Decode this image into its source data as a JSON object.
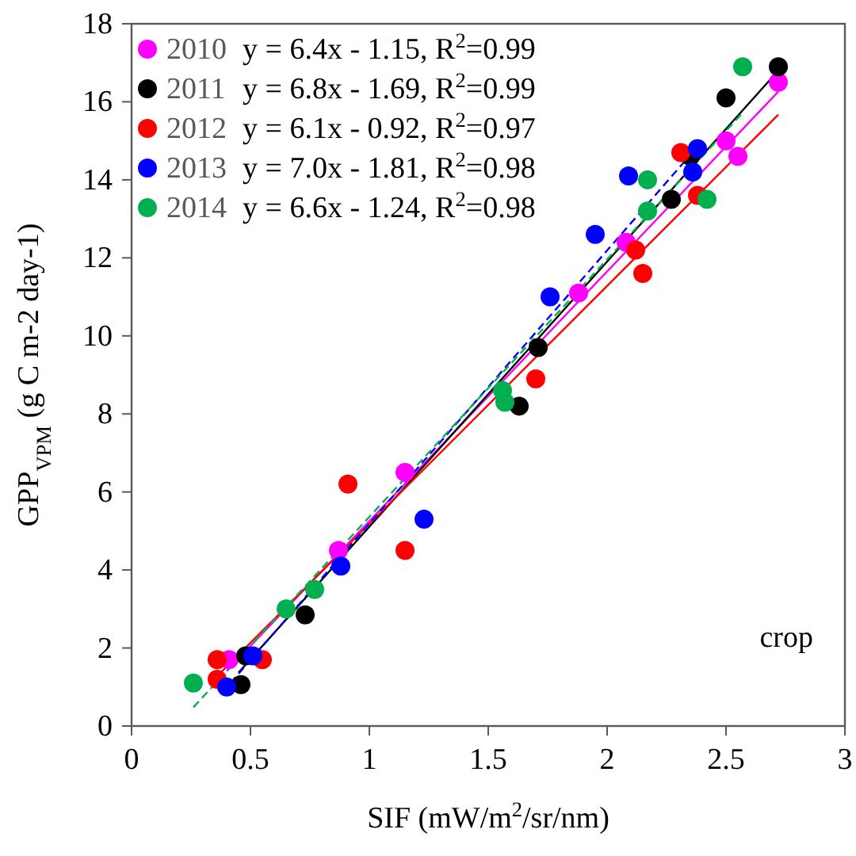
{
  "chart_data": {
    "type": "scatter",
    "xlabel": "SIF (mW/m$^{2}$/sr/nm)",
    "ylabel": "GPP$_{VPM}$ (g C m-2 day-1)",
    "xlim": [
      0,
      3
    ],
    "xticks": [
      0,
      {
        "value": 0.5,
        "label": "0.5"
      },
      1,
      {
        "value": 1.5,
        "label": "1.5"
      },
      2,
      {
        "value": 2.5,
        "label": "2.5"
      },
      3
    ],
    "ylim": [
      0,
      18
    ],
    "yticks": [
      0,
      2,
      4,
      6,
      8,
      10,
      12,
      14,
      16,
      18
    ],
    "grid": false,
    "legend": "top left",
    "marker": "circle",
    "annotations": [
      "y = 6.4x - 1.15, R$^{2}$=0.99",
      "y = 6.8x - 1.69, R$^{2}$=0.99",
      "y = 6.1x - 0.92, R$^{2}$=0.97",
      "y = 7.0x - 1.81, R$^{2}$=0.98",
      "y = 6.6x - 1.24, R$^{2}$=0.98",
      "crop"
    ],
    "series": [
      {
        "type": "line",
        "marker": "none",
        "color": "#ff00ff",
        "line_style": "solid",
        "x": [
          0.4,
          2.72
        ],
        "values": [
          1.41,
          16.26
        ]
      },
      {
        "type": "line",
        "marker": "none",
        "color": "#000000",
        "line_style": "solid",
        "x": [
          0.45,
          2.72
        ],
        "values": [
          1.37,
          16.8
        ]
      },
      {
        "type": "line",
        "marker": "none",
        "color": "#ff0000",
        "line_style": "solid",
        "x": [
          0.36,
          2.72
        ],
        "values": [
          1.28,
          15.67
        ]
      },
      {
        "type": "line",
        "marker": "none",
        "color": "#0000ff",
        "line_style": "dashed",
        "x": [
          0.38,
          2.37
        ],
        "values": [
          0.85,
          14.78
        ]
      },
      {
        "type": "line",
        "marker": "none",
        "color": "#00b050",
        "line_style": "dashed",
        "x": [
          0.26,
          2.57
        ],
        "values": [
          0.48,
          15.72
        ]
      },
      {
        "name": "2010",
        "color": "#ff00ff",
        "x": [
          0.41,
          0.87,
          1.15,
          1.88,
          2.08,
          2.5,
          2.55,
          2.72
        ],
        "values": [
          1.7,
          4.5,
          6.5,
          11.1,
          12.4,
          15.0,
          14.6,
          16.5
        ]
      },
      {
        "name": "2011",
        "color": "#000000",
        "x": [
          0.46,
          0.48,
          0.73,
          1.63,
          1.71,
          2.27,
          2.35,
          2.5,
          2.72
        ],
        "values": [
          1.06,
          1.8,
          2.85,
          8.2,
          9.7,
          13.5,
          14.6,
          16.1,
          16.9
        ]
      },
      {
        "name": "2012",
        "color": "#ff0000",
        "x": [
          0.36,
          0.36,
          0.55,
          0.91,
          1.15,
          1.7,
          2.12,
          2.15,
          2.31,
          2.38
        ],
        "values": [
          1.7,
          1.2,
          1.7,
          6.2,
          4.5,
          8.9,
          12.2,
          11.6,
          14.7,
          13.6
        ]
      },
      {
        "name": "2013",
        "color": "#0000ff",
        "x": [
          0.4,
          0.51,
          0.88,
          1.23,
          1.76,
          1.95,
          2.09,
          2.36,
          2.38
        ],
        "values": [
          1.0,
          1.8,
          4.1,
          5.3,
          11.0,
          12.6,
          14.1,
          14.2,
          14.8
        ]
      },
      {
        "name": "2014",
        "color": "#00b050",
        "x": [
          0.26,
          0.65,
          0.77,
          1.56,
          1.57,
          2.17,
          2.17,
          2.42,
          2.57
        ],
        "values": [
          1.1,
          3.0,
          3.5,
          8.6,
          8.3,
          14.0,
          13.2,
          13.5,
          16.9
        ]
      }
    ]
  }
}
